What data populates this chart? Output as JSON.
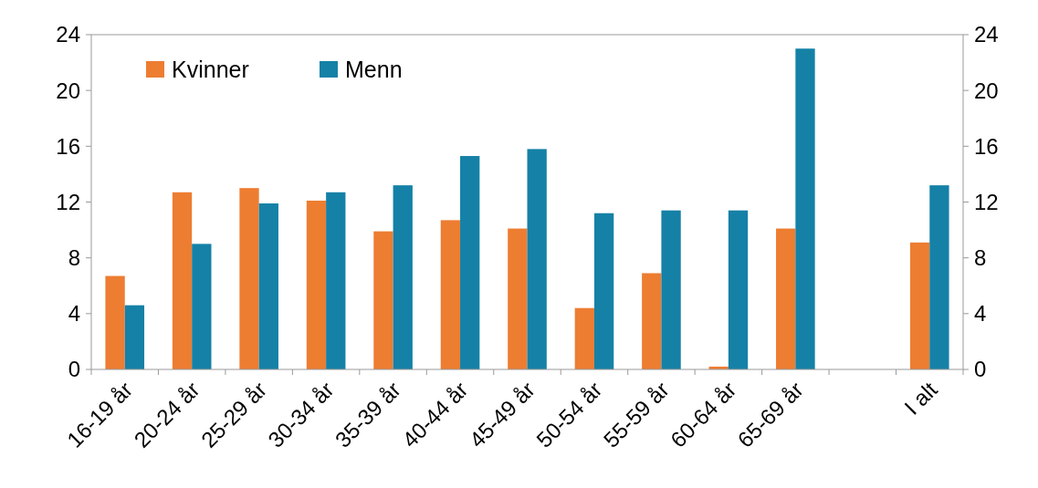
{
  "chart_data": {
    "type": "bar",
    "categories": [
      "16-19 år",
      "20-24 år",
      "25-29 år",
      "30-34 år",
      "35-39 år",
      "40-44 år",
      "45-49 år",
      "50-54 år",
      "55-59 år",
      "60-64 år",
      "65-69 år",
      null,
      "I alt"
    ],
    "series": [
      {
        "name": "Kvinner",
        "color": "#ed7d31",
        "values": [
          6.7,
          12.7,
          13.0,
          12.1,
          9.9,
          10.7,
          10.1,
          4.4,
          6.9,
          0.2,
          10.1,
          null,
          9.1
        ]
      },
      {
        "name": "Menn",
        "color": "#1581a6",
        "values": [
          4.6,
          9.0,
          11.9,
          12.7,
          13.2,
          15.3,
          15.8,
          11.2,
          11.4,
          11.4,
          23.0,
          null,
          13.2
        ]
      }
    ],
    "ylim": [
      0,
      24
    ],
    "yticks": [
      0,
      4,
      8,
      12,
      16,
      20,
      24
    ],
    "y2lim": [
      0,
      24
    ],
    "y2ticks": [
      0,
      4,
      8,
      12,
      16,
      20,
      24
    ],
    "grid": false,
    "legend": "top left"
  }
}
